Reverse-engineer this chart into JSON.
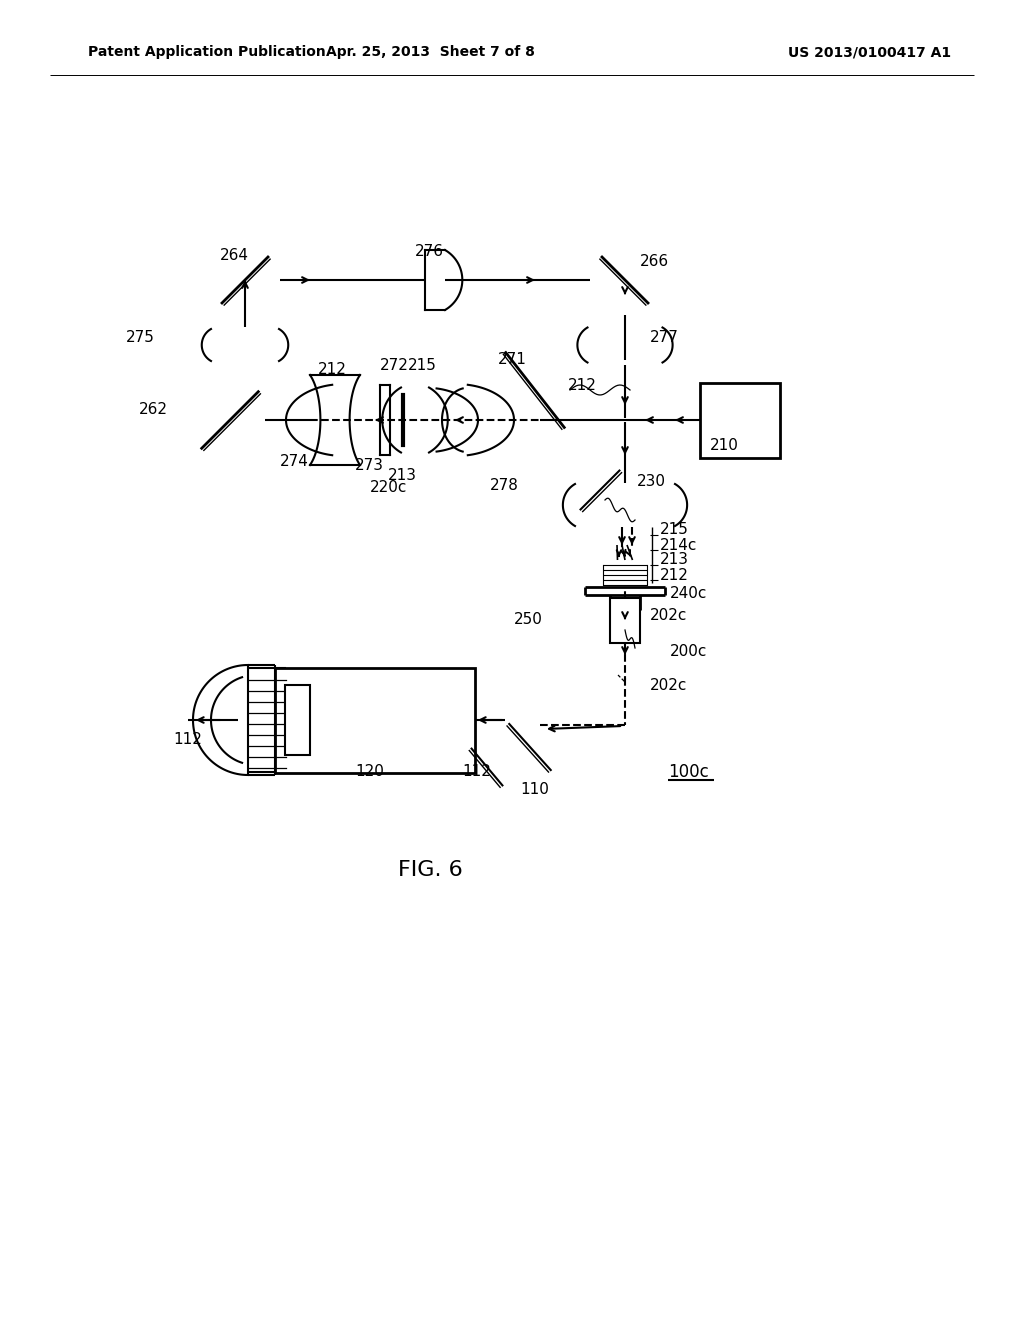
{
  "bg_color": "#ffffff",
  "line_color": "#000000",
  "header_left": "Patent Application Publication",
  "header_center": "Apr. 25, 2013  Sheet 7 of 8",
  "header_right": "US 2013/0100417 A1",
  "fig_label": "FIG. 6",
  "fig_ref": "100c"
}
